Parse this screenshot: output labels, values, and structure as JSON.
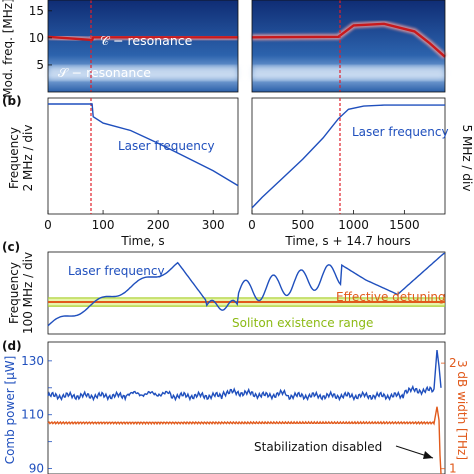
{
  "chart_data": [
    {
      "panel": "a",
      "type": "heatmap",
      "ylabel": "Mod. freq. [MHz]",
      "yticks": [
        5,
        10,
        15
      ],
      "ylim": [
        0,
        17
      ],
      "annotations": [
        "𝒞 − resonance",
        "𝒮 − resonance"
      ],
      "colors": {
        "background": "#2a5fa8",
        "c_trace": "#c8191c",
        "s_band": "#d8e6f5"
      },
      "series": [
        {
          "x": [
            0,
            80,
            82,
            345
          ],
          "values": [
            10.2,
            9.6,
            10.1,
            10.1
          ]
        },
        {
          "x": [
            0,
            850,
            1000,
            1300,
            1600,
            1750,
            1900
          ],
          "values": [
            10.1,
            10.2,
            12.3,
            12.6,
            11.2,
            9.0,
            6.5
          ]
        }
      ]
    },
    {
      "panel": "b",
      "type": "line",
      "panel_label": "(b)",
      "ylabel_left": "Frequency\n2 MHz / div",
      "ylabel_right": "5 MHz / div",
      "left": {
        "xlabel": "Time, s",
        "xticks": [
          0,
          100,
          200,
          300
        ],
        "xlim": [
          0,
          345
        ],
        "ylim": [
          0,
          10
        ],
        "legend": "Laser frequency",
        "x": [
          0,
          80,
          82,
          100,
          150,
          200,
          250,
          300,
          345
        ],
        "values": [
          10.0,
          10.0,
          8.8,
          8.2,
          7.5,
          6.3,
          5.0,
          3.7,
          2.3
        ]
      },
      "right": {
        "xlabel": "Time, s + 14.7 hours",
        "xticks": [
          0,
          500,
          1000,
          1500
        ],
        "xlim": [
          0,
          1900
        ],
        "ylim": [
          0,
          10
        ],
        "legend": "Laser frequency",
        "x": [
          0,
          100,
          300,
          500,
          700,
          850,
          950,
          1100,
          1300,
          1500,
          1700,
          1900
        ],
        "values": [
          0.2,
          1.2,
          3.0,
          4.8,
          6.8,
          8.6,
          9.5,
          9.8,
          9.9,
          9.9,
          9.9,
          9.9
        ]
      }
    },
    {
      "panel": "c",
      "type": "line",
      "panel_label": "(c)",
      "ylabel": "Frequency\n100 MHz / div",
      "labels": [
        "Laser frequency",
        "Effective detuning",
        "Soliton existence range"
      ],
      "colors": {
        "laser": "#1f4fbd",
        "detuning": "#e15a1c",
        "soliton_band": "#b9d93b"
      },
      "detuning_level": 0.39,
      "soliton_range": [
        0.34,
        0.44
      ]
    },
    {
      "panel": "d",
      "type": "line",
      "panel_label": "(d)",
      "ylabel_left": "Comb power [μW]",
      "ylabel_right": "3 dB width [THz]",
      "yticks_left": [
        90,
        100,
        110,
        120,
        130
      ],
      "ytick_labels_left": [
        "90",
        "",
        "110",
        "",
        "130"
      ],
      "ylim_left": [
        88,
        137
      ],
      "yticks_right": [
        1,
        2
      ],
      "ylim_right": [
        0.95,
        2.2
      ],
      "annotation": "Stabilization disabled",
      "colors": {
        "left_axis": "#1f4fbd",
        "right_axis": "#e15a1c"
      },
      "comb_power_level": 117,
      "width_level": 107
    }
  ]
}
